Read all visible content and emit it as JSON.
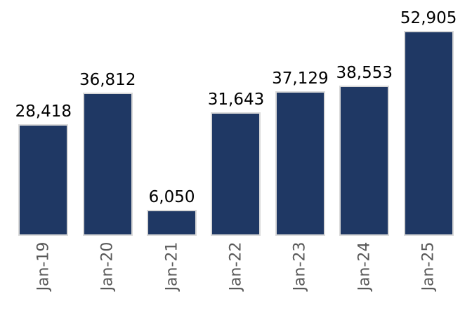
{
  "chart_data": {
    "type": "bar",
    "categories": [
      "Jan-19",
      "Jan-20",
      "Jan-21",
      "Jan-22",
      "Jan-23",
      "Jan-24",
      "Jan-25"
    ],
    "values": [
      28418,
      36812,
      6050,
      31643,
      37129,
      38553,
      52905
    ],
    "data_labels": [
      "28,418",
      "36,812",
      "6,050",
      "31,643",
      "37,129",
      "38,553",
      "52,905"
    ],
    "title": "",
    "xlabel": "",
    "ylabel": "",
    "series_name": "",
    "y_axis_visible": false,
    "x_axis_line_visible": false,
    "grid": false,
    "legend": false,
    "data_labels_visible": true,
    "x_labels_rotation_degrees": -90,
    "colors": {
      "bar_fill": "#1f3864",
      "bar_border": "#d9d9d9",
      "data_label_text": "#000000",
      "axis_label_text": "#595959",
      "background": "#ffffff"
    }
  }
}
